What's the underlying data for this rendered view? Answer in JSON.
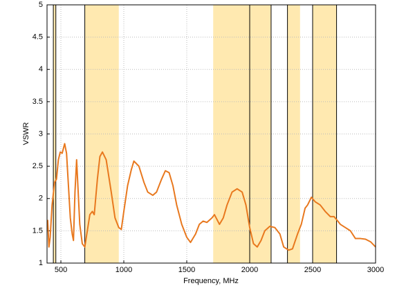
{
  "chart_data": {
    "type": "line",
    "xlabel": "Frequency, MHz",
    "ylabel": "VSWR",
    "xlim": [
      390,
      3000
    ],
    "ylim": [
      1,
      5
    ],
    "xticks": [
      500,
      1000,
      1500,
      2000,
      2500,
      3000
    ],
    "yticks": [
      1,
      1.5,
      2,
      2.5,
      3,
      3.5,
      4,
      4.5,
      5
    ],
    "grid": true,
    "bands": [
      [
        440,
        460
      ],
      [
        690,
        960
      ],
      [
        1710,
        2170
      ],
      [
        2300,
        2400
      ],
      [
        2500,
        2690
      ]
    ],
    "band_color": "#ffe9b0",
    "markers": [
      440,
      460,
      690,
      2000,
      2170,
      2300,
      2500,
      2690
    ],
    "series": [
      {
        "color": "#e8781e",
        "x": [
          395,
          405,
          415,
          430,
          450,
          465,
          480,
          495,
          510,
          530,
          545,
          560,
          575,
          590,
          600,
          612,
          625,
          635,
          650,
          670,
          690,
          710,
          730,
          750,
          765,
          790,
          810,
          830,
          860,
          900,
          930,
          960,
          980,
          1000,
          1030,
          1060,
          1080,
          1120,
          1160,
          1190,
          1230,
          1260,
          1300,
          1330,
          1360,
          1390,
          1420,
          1460,
          1500,
          1530,
          1570,
          1600,
          1630,
          1660,
          1700,
          1720,
          1760,
          1790,
          1820,
          1860,
          1900,
          1940,
          1970,
          2000,
          2030,
          2060,
          2090,
          2120,
          2160,
          2200,
          2240,
          2270,
          2310,
          2340,
          2380,
          2410,
          2440,
          2460,
          2490,
          2520,
          2560,
          2600,
          2640,
          2670,
          2700,
          2720,
          2760,
          2800,
          2840,
          2880,
          2920,
          2960,
          3000
        ],
        "values": [
          1.67,
          1.25,
          1.4,
          1.9,
          2.25,
          2.3,
          2.6,
          2.72,
          2.7,
          2.85,
          2.7,
          2.2,
          1.7,
          1.45,
          1.35,
          2.1,
          2.6,
          2.2,
          1.6,
          1.3,
          1.25,
          1.5,
          1.75,
          1.8,
          1.75,
          2.3,
          2.65,
          2.72,
          2.6,
          2.1,
          1.7,
          1.55,
          1.52,
          1.8,
          2.2,
          2.45,
          2.58,
          2.5,
          2.25,
          2.1,
          2.05,
          2.1,
          2.3,
          2.43,
          2.4,
          2.2,
          1.9,
          1.6,
          1.4,
          1.32,
          1.45,
          1.6,
          1.65,
          1.63,
          1.7,
          1.75,
          1.6,
          1.7,
          1.9,
          2.1,
          2.15,
          2.1,
          1.9,
          1.55,
          1.3,
          1.25,
          1.35,
          1.5,
          1.57,
          1.55,
          1.45,
          1.25,
          1.2,
          1.22,
          1.45,
          1.6,
          1.85,
          1.9,
          2.02,
          1.95,
          1.9,
          1.8,
          1.72,
          1.72,
          1.65,
          1.6,
          1.55,
          1.5,
          1.38,
          1.38,
          1.37,
          1.33,
          1.25
        ]
      }
    ]
  }
}
